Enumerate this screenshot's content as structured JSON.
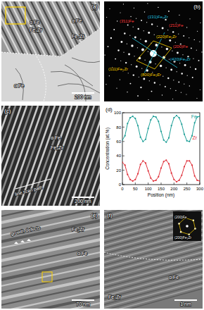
{
  "panels": [
    {
      "label": "(a)",
      "annotations": [
        "α Fe",
        "Fe₂Zr",
        "α Fe",
        "Fe₂Zr",
        "α Fe"
      ],
      "scale_bar": "200 nm"
    },
    {
      "label": "(b)",
      "annotations": [
        "(3̄11)Fe",
        "(1̄31)Fe₂Zr",
        "(2̄11)Fe",
        "(220)Fe₂Zr",
        "(200)Fe",
        "(111)Fe₂Zr",
        "(800)Fe₂Zr",
        "(420)Fe₂Zr"
      ]
    },
    {
      "label": "(c)",
      "annotations": [
        "α Fe",
        "Fe₂Zr",
        "line scan path"
      ],
      "scale_bar": "200 nm"
    },
    {
      "label": "(d)"
    },
    {
      "label": "(e)",
      "annotations": [
        "growth defects",
        "Fe₂Zr",
        "α Fe"
      ],
      "scale_bar": "70 nm"
    },
    {
      "label": "(f)",
      "annotations": [
        "α Fe",
        "Fe₂Zr",
        "(200)Fe",
        "(200)Fe₂Zr"
      ],
      "scale_bar": "1 nm"
    }
  ],
  "chart_data": {
    "type": "line",
    "xlabel": "Position (nm)",
    "ylabel": "Concentration (at.%)",
    "x": [
      0,
      10,
      20,
      30,
      40,
      50,
      60,
      70,
      80,
      90,
      100,
      110,
      120,
      130,
      140,
      150,
      160,
      170,
      180,
      190,
      200,
      210,
      220,
      230,
      240,
      250,
      260,
      270,
      280,
      290,
      300
    ],
    "series": [
      {
        "name": "Fe",
        "color": "#1a9e96",
        "values": [
          62,
          68,
          85,
          93,
          95,
          92,
          82,
          66,
          60,
          63,
          78,
          90,
          95,
          94,
          88,
          74,
          62,
          59,
          65,
          82,
          93,
          96,
          93,
          84,
          70,
          61,
          60,
          68,
          86,
          94,
          95
        ]
      },
      {
        "name": "Zr",
        "color": "#e0303a",
        "values": [
          31,
          27,
          14,
          7,
          5,
          7,
          15,
          28,
          33,
          30,
          19,
          9,
          5,
          6,
          11,
          23,
          32,
          34,
          29,
          16,
          7,
          4,
          6,
          13,
          25,
          33,
          33,
          27,
          12,
          6,
          5
        ]
      }
    ],
    "xlim": [
      0,
      300
    ],
    "ylim": [
      0,
      100
    ],
    "xticks": [
      0,
      50,
      100,
      150,
      200,
      250,
      300
    ],
    "yticks": [
      0,
      20,
      40,
      60,
      80,
      100
    ],
    "marker": "circle"
  }
}
